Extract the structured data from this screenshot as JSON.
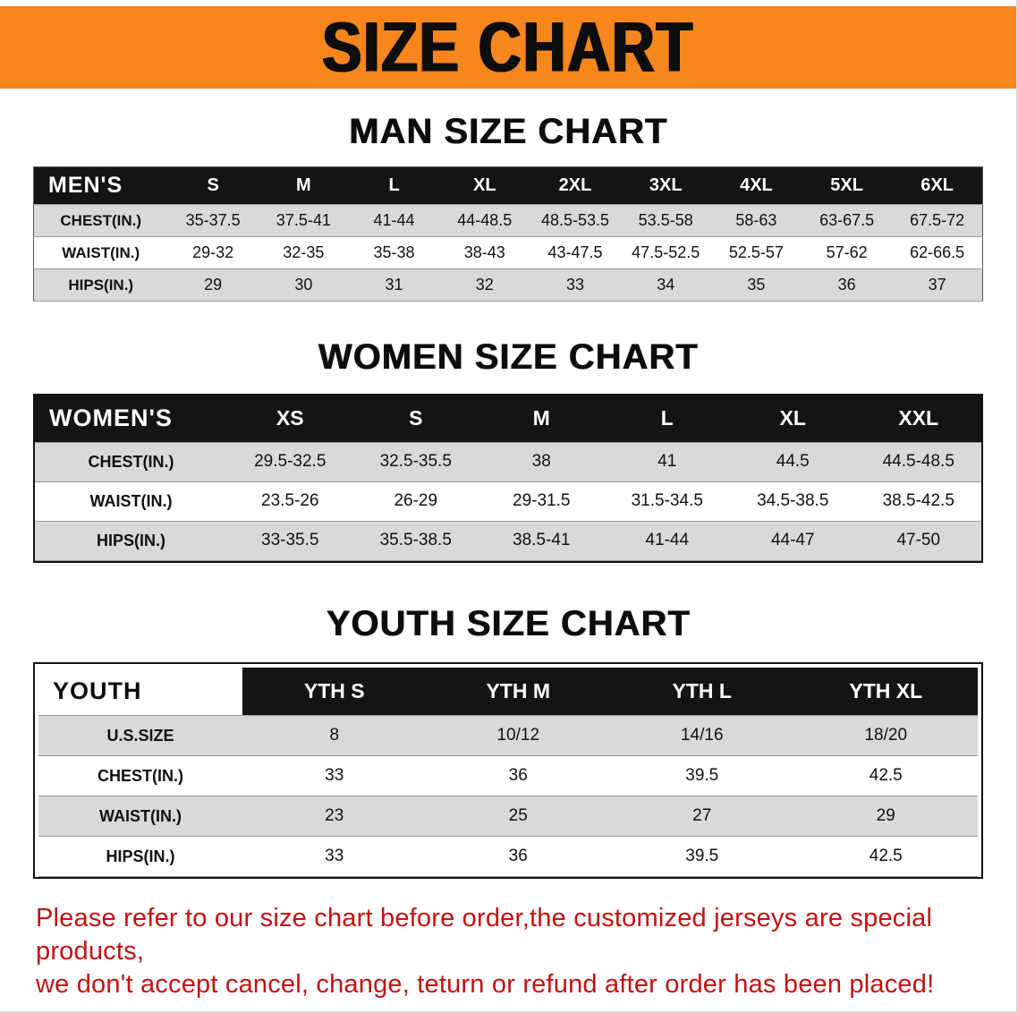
{
  "banner": {
    "title": "SIZE CHART",
    "bg_color": "#F6861D",
    "text_color": "#0D0D0D"
  },
  "sections": [
    {
      "heading": "MAN SIZE CHART",
      "table": {
        "title": "MEN'S",
        "header": [
          "MEN'S",
          "S",
          "M",
          "L",
          "XL",
          "2XL",
          "3XL",
          "4XL",
          "5XL",
          "6XL"
        ],
        "rows": [
          [
            "CHEST(IN.)",
            "35-37.5",
            "37.5-41",
            "41-44",
            "44-48.5",
            "48.5-53.5",
            "53.5-58",
            "58-63",
            "63-67.5",
            "67.5-72"
          ],
          [
            "WAIST(IN.)",
            "29-32",
            "32-35",
            "35-38",
            "38-43",
            "43-47.5",
            "47.5-52.5",
            "52.5-57",
            "57-62",
            "62-66.5"
          ],
          [
            "HIPS(IN.)",
            "29",
            "30",
            "31",
            "32",
            "33",
            "34",
            "35",
            "36",
            "37"
          ]
        ]
      }
    },
    {
      "heading": "WOMEN SIZE CHART",
      "table": {
        "title": "WOMEN'S",
        "header": [
          "WOMEN'S",
          "XS",
          "S",
          "M",
          "L",
          "XL",
          "XXL"
        ],
        "rows": [
          [
            "CHEST(IN.)",
            "29.5-32.5",
            "32.5-35.5",
            "38",
            "41",
            "44.5",
            "44.5-48.5"
          ],
          [
            "WAIST(IN.)",
            "23.5-26",
            "26-29",
            "29-31.5",
            "31.5-34.5",
            "34.5-38.5",
            "38.5-42.5"
          ],
          [
            "HIPS(IN.)",
            "33-35.5",
            "35.5-38.5",
            "38.5-41",
            "41-44",
            "44-47",
            "47-50"
          ]
        ]
      }
    },
    {
      "heading": "YOUTH SIZE CHART",
      "table": {
        "title": "YOUTH",
        "header": [
          "YOUTH",
          "YTH S",
          "YTH M",
          "YTH L",
          "YTH XL"
        ],
        "rows": [
          [
            "U.S.SIZE",
            "8",
            "10/12",
            "14/16",
            "18/20"
          ],
          [
            "CHEST(IN.)",
            "33",
            "36",
            "39.5",
            "42.5"
          ],
          [
            "WAIST(IN.)",
            "23",
            "25",
            "27",
            "29"
          ],
          [
            "HIPS(IN.)",
            "33",
            "36",
            "39.5",
            "42.5"
          ]
        ]
      }
    }
  ],
  "footer_note": {
    "lines": [
      "Please refer to our size chart before order,the customized jerseys are special products,",
      "we don't accept cancel, change, teturn or refund after order has been placed!"
    ],
    "text_color": "#C41111"
  }
}
